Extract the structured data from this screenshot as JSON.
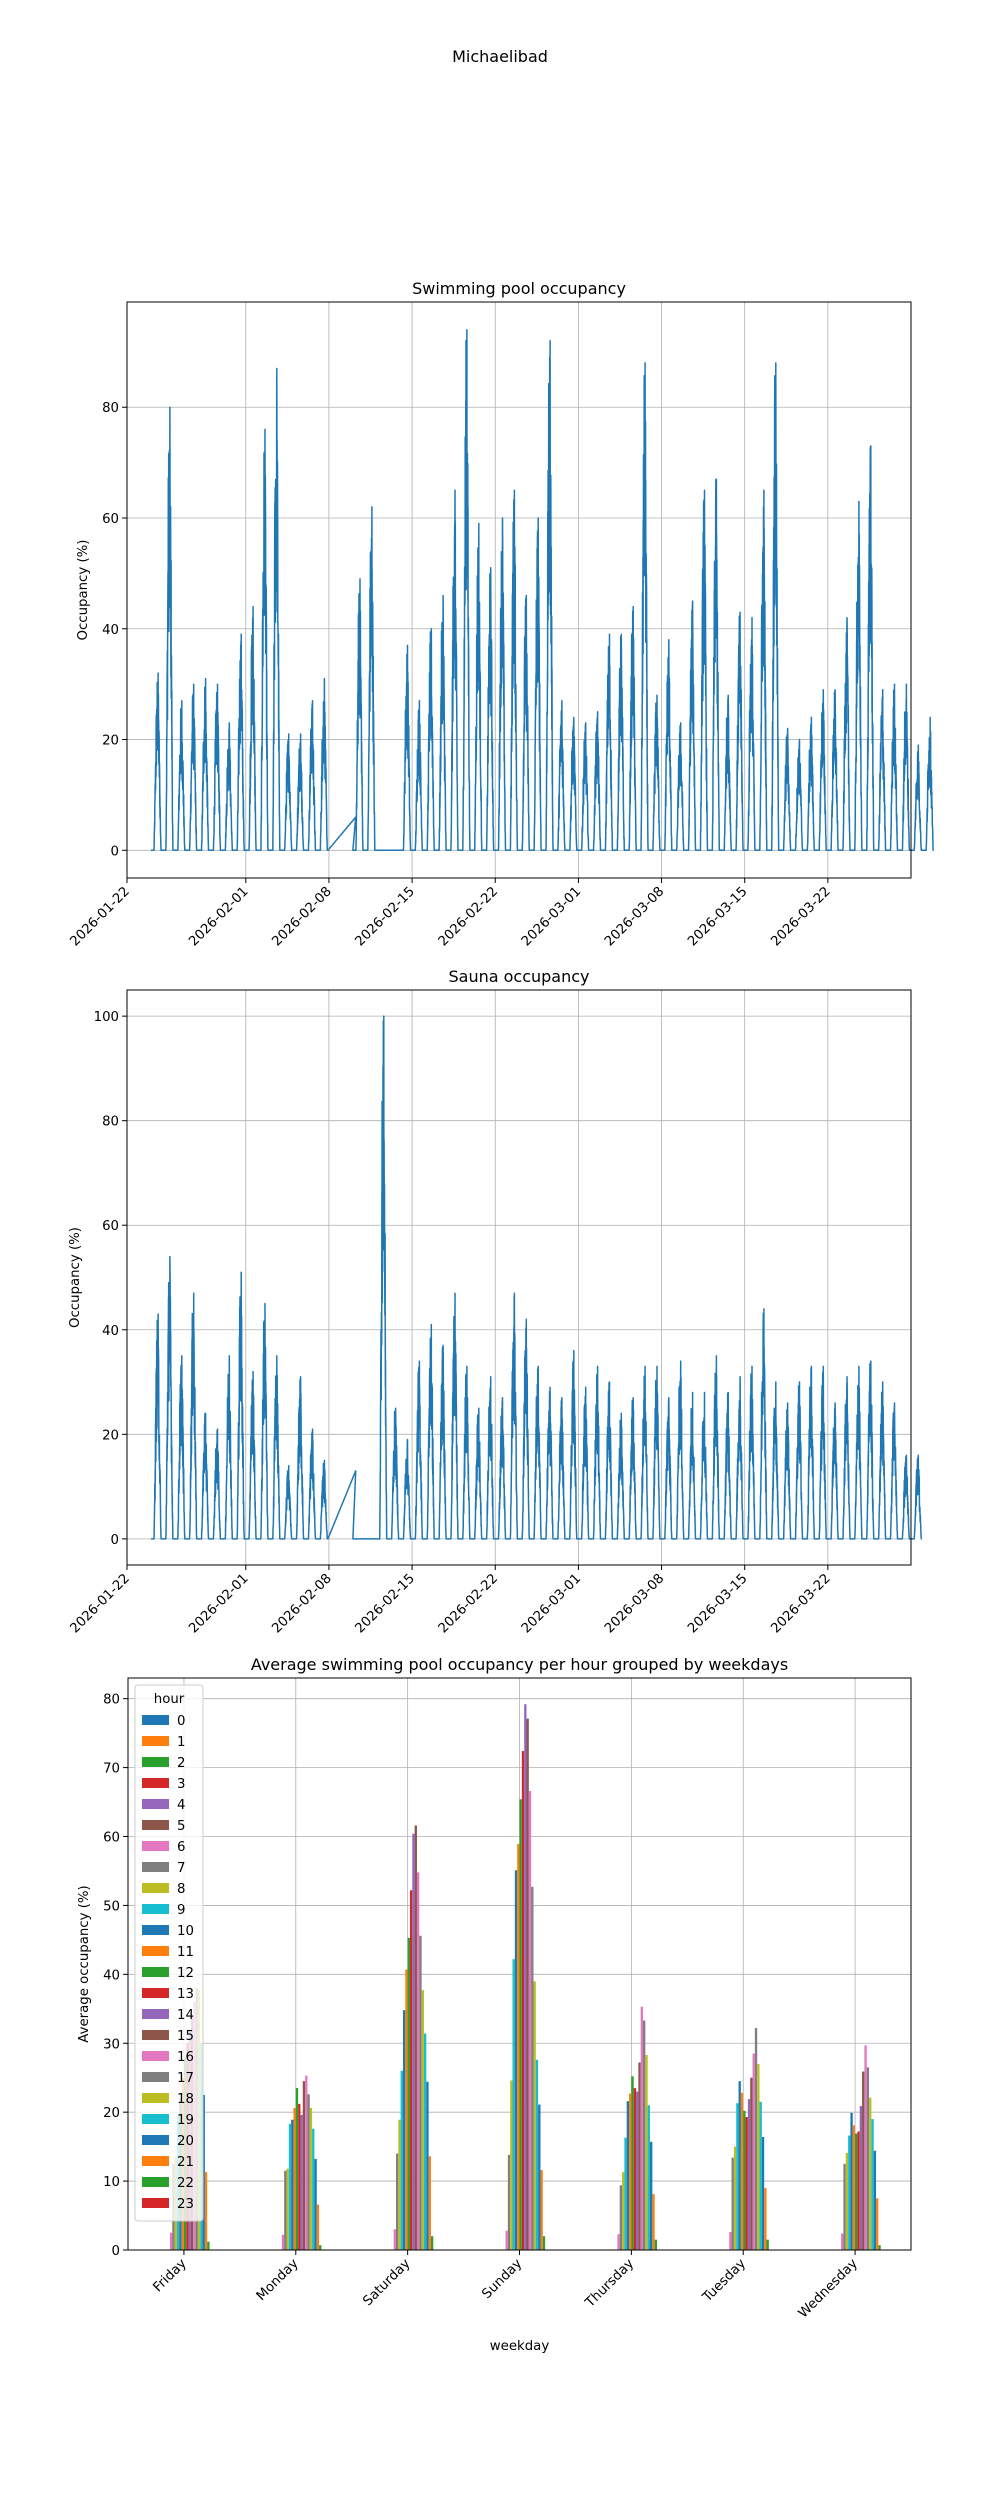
{
  "figure": {
    "suptitle": "Michaelibad"
  },
  "chart_data": [
    {
      "type": "line",
      "title": "Swimming pool occupancy",
      "xlabel": "",
      "ylabel": "Occupancy (%)",
      "x_tick_labels": [
        "2026-01-22",
        "2026-02-01",
        "2026-02-08",
        "2026-02-15",
        "2026-02-22",
        "2026-03-01",
        "2026-03-08",
        "2026-03-15",
        "2026-03-22"
      ],
      "x_range": [
        "2026-01-22",
        "2026-03-29"
      ],
      "y_ticks": [
        0,
        20,
        40,
        60,
        80
      ],
      "ylim": [
        -5,
        99
      ],
      "grid": true,
      "color": "#1f77b4",
      "series_start": "2026-01-24",
      "gap": {
        "from": "2026-02-08",
        "to": "2026-02-10",
        "value_end": 6
      },
      "daily_peaks": [
        32,
        80,
        27,
        30,
        31,
        30,
        23,
        39,
        44,
        76,
        87,
        21,
        21,
        27,
        31,
        32,
        38,
        49,
        62,
        0,
        0,
        37,
        27,
        40,
        46,
        65,
        94,
        59,
        51,
        60,
        65,
        46,
        60,
        92,
        27,
        24,
        23,
        25,
        39,
        39,
        44,
        88,
        28,
        38,
        23,
        45,
        65,
        67,
        28,
        43,
        42,
        65,
        88,
        22,
        20,
        24,
        29,
        29,
        42,
        63,
        73,
        29,
        30,
        30,
        19,
        24
      ]
    },
    {
      "type": "line",
      "title": "Sauna occupancy",
      "xlabel": "",
      "ylabel": "Occupancy (%)",
      "x_tick_labels": [
        "2026-01-22",
        "2026-02-01",
        "2026-02-08",
        "2026-02-15",
        "2026-02-22",
        "2026-03-01",
        "2026-03-08",
        "2026-03-15",
        "2026-03-22"
      ],
      "x_range": [
        "2026-01-22",
        "2026-03-29"
      ],
      "y_ticks": [
        0,
        20,
        40,
        60,
        80,
        100
      ],
      "ylim": [
        -5,
        105
      ],
      "grid": true,
      "color": "#1f77b4",
      "series_start": "2026-01-24",
      "gap": {
        "from": "2026-02-08",
        "to": "2026-02-10",
        "value_end": 13
      },
      "daily_peaks": [
        43,
        54,
        35,
        47,
        24,
        21,
        35,
        51,
        32,
        45,
        35,
        14,
        31,
        21,
        15,
        34,
        37,
        0,
        0,
        100,
        25,
        19,
        34,
        41,
        37,
        47,
        33,
        25,
        31,
        27,
        47,
        42,
        33,
        29,
        27,
        36,
        29,
        33,
        30,
        24,
        27,
        33,
        33,
        27,
        34,
        28,
        28,
        35,
        28,
        31,
        33,
        44,
        30,
        26,
        30,
        33,
        33,
        26,
        31,
        33,
        34,
        30,
        26,
        16,
        16
      ]
    },
    {
      "type": "bar",
      "title": "Average swimming pool occupancy per hour grouped by weekdays",
      "xlabel": "weekday",
      "ylabel": "Average occupancy (%)",
      "categories": [
        "Friday",
        "Monday",
        "Saturday",
        "Sunday",
        "Thursday",
        "Tuesday",
        "Wednesday"
      ],
      "y_ticks": [
        0,
        10,
        20,
        30,
        40,
        50,
        60,
        70,
        80
      ],
      "ylim": [
        0,
        83
      ],
      "grid": true,
      "legend": {
        "title": "hour",
        "position": "top-left"
      },
      "colors": [
        "#1f77b4",
        "#ff7f0e",
        "#2ca02c",
        "#d62728",
        "#9467bd",
        "#8c564b",
        "#e377c2",
        "#7f7f7f",
        "#bcbd22",
        "#17becf"
      ],
      "series": [
        {
          "name": "0",
          "values": [
            0,
            0,
            0,
            0,
            0,
            0,
            0
          ]
        },
        {
          "name": "1",
          "values": [
            0,
            0,
            0,
            0,
            0,
            0,
            0
          ]
        },
        {
          "name": "2",
          "values": [
            0,
            0,
            0,
            0,
            0,
            0,
            0
          ]
        },
        {
          "name": "3",
          "values": [
            0,
            0,
            0,
            0,
            0,
            0,
            0
          ]
        },
        {
          "name": "4",
          "values": [
            0,
            0,
            0,
            0,
            0,
            0,
            0
          ]
        },
        {
          "name": "5",
          "values": [
            0,
            0,
            0,
            0,
            0,
            0,
            0
          ]
        },
        {
          "name": "6",
          "values": [
            2.5,
            2.2,
            3.0,
            2.8,
            2.3,
            2.6,
            2.4
          ]
        },
        {
          "name": "7",
          "values": [
            12.5,
            11.5,
            14.0,
            13.8,
            9.4,
            13.4,
            12.5
          ]
        },
        {
          "name": "8",
          "values": [
            13.5,
            11.8,
            18.9,
            24.6,
            11.3,
            15.0,
            14.1
          ]
        },
        {
          "name": "9",
          "values": [
            19.5,
            18.3,
            26.0,
            42.2,
            16.3,
            21.3,
            16.6
          ]
        },
        {
          "name": "10",
          "values": [
            22.0,
            18.9,
            34.8,
            55.1,
            21.6,
            24.5,
            19.9
          ]
        },
        {
          "name": "11",
          "values": [
            25.0,
            20.6,
            40.7,
            58.9,
            22.7,
            22.8,
            18.1
          ]
        },
        {
          "name": "12",
          "values": [
            28.0,
            23.5,
            45.3,
            65.4,
            25.2,
            20.2,
            16.9
          ]
        },
        {
          "name": "13",
          "values": [
            30.0,
            21.2,
            52.2,
            72.4,
            23.5,
            19.3,
            17.2
          ]
        },
        {
          "name": "14",
          "values": [
            32.0,
            19.6,
            60.4,
            79.2,
            23.0,
            21.9,
            20.9
          ]
        },
        {
          "name": "15",
          "values": [
            34.0,
            24.5,
            61.6,
            77.1,
            27.2,
            25.0,
            25.9
          ]
        },
        {
          "name": "16",
          "values": [
            36.0,
            25.3,
            54.8,
            66.6,
            35.3,
            28.5,
            29.7
          ]
        },
        {
          "name": "17",
          "values": [
            38.0,
            22.6,
            45.6,
            52.7,
            33.3,
            32.2,
            26.5
          ]
        },
        {
          "name": "18",
          "values": [
            37.8,
            20.6,
            37.7,
            39.0,
            28.3,
            27.0,
            22.1
          ]
        },
        {
          "name": "19",
          "values": [
            30.0,
            17.6,
            31.4,
            27.6,
            21.0,
            21.5,
            19.0
          ]
        },
        {
          "name": "20",
          "values": [
            22.5,
            13.2,
            24.4,
            21.1,
            15.7,
            16.4,
            14.4
          ]
        },
        {
          "name": "21",
          "values": [
            11.3,
            6.6,
            13.6,
            11.6,
            8.1,
            9.0,
            7.5
          ]
        },
        {
          "name": "22",
          "values": [
            1.2,
            0.7,
            2.0,
            2.0,
            1.5,
            1.5,
            0.7
          ]
        },
        {
          "name": "23",
          "values": [
            0,
            0,
            0,
            0,
            0,
            0,
            0
          ]
        }
      ]
    }
  ]
}
